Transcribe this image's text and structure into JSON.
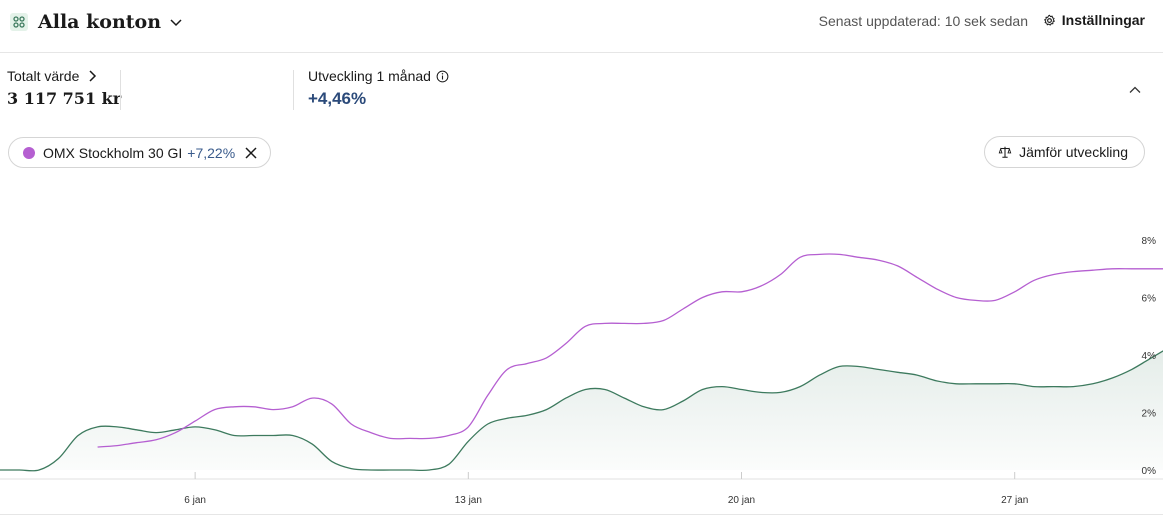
{
  "header": {
    "account_title": "Alla konton",
    "app_icon": "grid-icon",
    "updated_text": "Senast uppdaterad: 10 sek sedan",
    "settings_label": "Inställningar"
  },
  "summary": {
    "total_label": "Totalt värde",
    "total_value": "3 117 751 kr",
    "dev_label": "Utveckling 1 månad",
    "dev_value": "+4,46%"
  },
  "comparison_chip": {
    "name": "OMX Stockholm 30 GI",
    "change": "+7,22%",
    "color": "#b55fd1"
  },
  "compare_button": {
    "label": "Jämför utveckling"
  },
  "colors": {
    "portfolio": "#3d7a5e",
    "index": "#b55fd1",
    "positive_text": "#2b4a7a"
  },
  "chart_data": {
    "type": "line",
    "x_ticks": [
      "6 jan",
      "13 jan",
      "20 jan",
      "27 jan"
    ],
    "y_ticks": [
      "0%",
      "2%",
      "4%",
      "6%",
      "8%"
    ],
    "ylim": [
      0,
      8
    ],
    "series": [
      {
        "key": "portfolio",
        "fill": true,
        "x": [
          1,
          1.5,
          2,
          2.5,
          3,
          3.5,
          4,
          4.5,
          5,
          5.5,
          6,
          6.5,
          7,
          7.5,
          8,
          8.5,
          9,
          9.5,
          10,
          10.5,
          11,
          11.5,
          12,
          12.5,
          13,
          13.5,
          14,
          14.5,
          15,
          15.5,
          16,
          16.5,
          17,
          17.5,
          18,
          18.5,
          19,
          19.5,
          20,
          20.5,
          21,
          21.5,
          22,
          22.5,
          23,
          23.5,
          24,
          24.5,
          25,
          25.5,
          26,
          26.5,
          27,
          27.5,
          28,
          28.5,
          29,
          29.5,
          30,
          30.5,
          31
        ],
        "values": [
          0.0,
          0.0,
          0.0,
          0.4,
          1.2,
          1.5,
          1.5,
          1.4,
          1.3,
          1.4,
          1.5,
          1.4,
          1.2,
          1.2,
          1.2,
          1.2,
          0.9,
          0.3,
          0.05,
          0.0,
          0.0,
          0.0,
          0.0,
          0.2,
          1.0,
          1.6,
          1.8,
          1.9,
          2.1,
          2.5,
          2.8,
          2.8,
          2.5,
          2.2,
          2.1,
          2.4,
          2.8,
          2.9,
          2.8,
          2.7,
          2.7,
          2.9,
          3.3,
          3.6,
          3.6,
          3.5,
          3.4,
          3.3,
          3.1,
          3.0,
          3.0,
          3.0,
          3.0,
          2.9,
          2.9,
          2.9,
          3.0,
          3.2,
          3.5,
          3.9,
          4.3
        ]
      },
      {
        "key": "index",
        "fill": false,
        "x": [
          3.5,
          4,
          4.5,
          5,
          5.5,
          6,
          6.5,
          7,
          7.5,
          8,
          8.5,
          9,
          9.5,
          10,
          10.5,
          11,
          11.5,
          12,
          12.5,
          13,
          13.5,
          14,
          14.5,
          15,
          15.5,
          16,
          16.5,
          17,
          17.5,
          18,
          18.5,
          19,
          19.5,
          20,
          20.5,
          21,
          21.5,
          22,
          22.5,
          23,
          23.5,
          24,
          24.5,
          25,
          25.5,
          26,
          26.5,
          27,
          27.5,
          28,
          28.5,
          29,
          29.5,
          30,
          30.5,
          31
        ],
        "values": [
          0.8,
          0.85,
          0.95,
          1.05,
          1.3,
          1.7,
          2.1,
          2.2,
          2.2,
          2.1,
          2.2,
          2.5,
          2.3,
          1.6,
          1.3,
          1.1,
          1.1,
          1.1,
          1.2,
          1.5,
          2.6,
          3.5,
          3.7,
          3.9,
          4.4,
          5.0,
          5.1,
          5.1,
          5.1,
          5.2,
          5.6,
          6.0,
          6.2,
          6.2,
          6.4,
          6.8,
          7.4,
          7.5,
          7.5,
          7.4,
          7.3,
          7.1,
          6.7,
          6.3,
          6.0,
          5.9,
          5.9,
          6.2,
          6.6,
          6.8,
          6.9,
          6.95,
          7.0,
          7.0,
          7.0,
          7.0
        ]
      }
    ],
    "x_tick_values": [
      6,
      13,
      20,
      27
    ],
    "xlim": [
      1,
      31
    ]
  }
}
